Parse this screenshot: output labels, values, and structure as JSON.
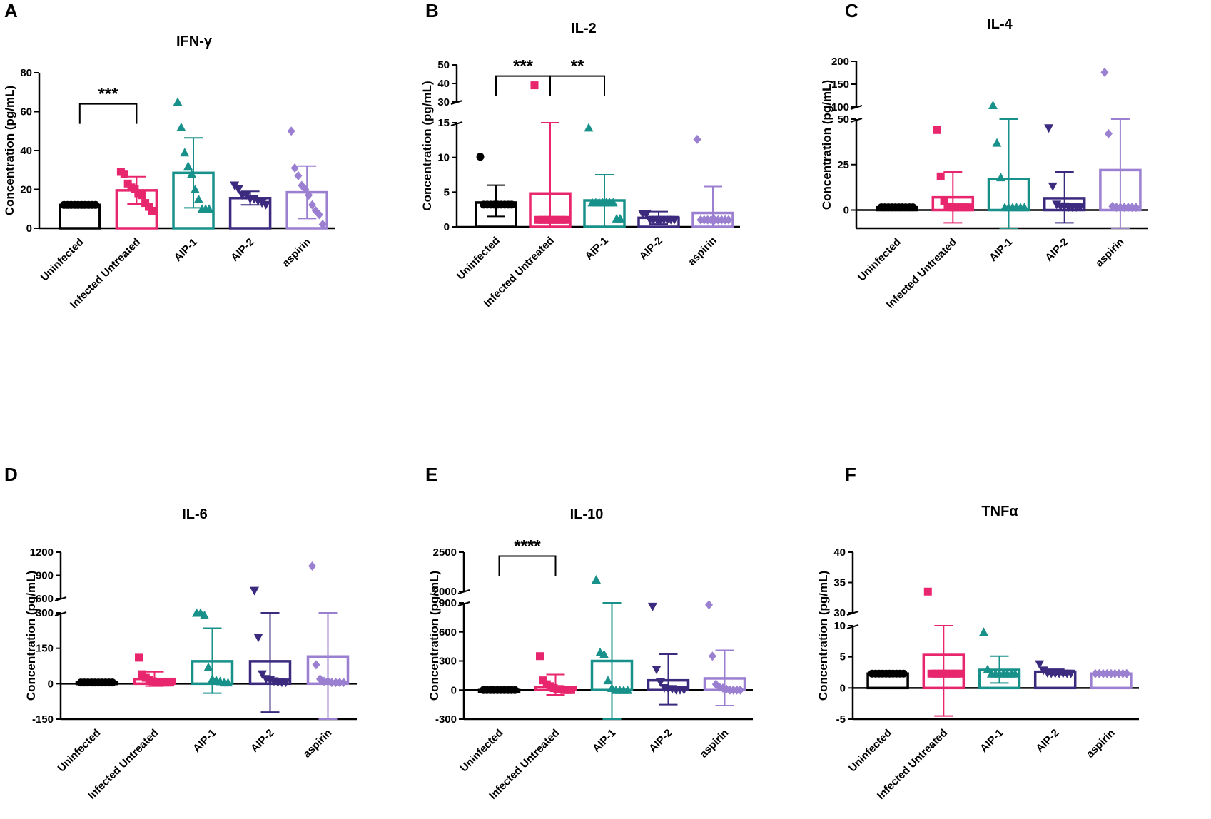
{
  "chart_data": [
    {
      "panel": "A",
      "title": "IFN-γ",
      "type": "bar",
      "ylabel": "Concentration (pg/mL)",
      "categories": [
        "Uninfected",
        "Infected Untreated",
        "AIP-1",
        "AIP-2",
        "aspirin"
      ],
      "segments": [
        {
          "range": [
            0,
            80
          ],
          "ticks": [
            0,
            20,
            40,
            60,
            80
          ]
        }
      ],
      "means": [
        12,
        19.5,
        28.5,
        15.5,
        18.5
      ],
      "errors": [
        [
          12,
          12
        ],
        [
          12.5,
          26.5
        ],
        [
          10.5,
          46.5
        ],
        [
          12,
          19
        ],
        [
          5,
          32
        ]
      ],
      "points": [
        [
          12,
          12,
          12,
          12,
          12,
          12,
          12,
          12,
          12,
          12
        ],
        [
          29,
          28,
          23,
          21,
          20,
          18,
          17,
          13,
          11,
          9
        ],
        [
          65,
          52,
          39,
          32,
          28,
          20,
          15,
          10,
          10,
          10
        ],
        [
          22,
          20,
          17,
          17,
          15,
          15,
          14,
          13,
          12
        ],
        [
          50,
          31,
          27,
          22,
          20,
          17,
          12,
          9,
          7,
          2
        ]
      ],
      "significance": [
        {
          "from": 0,
          "to": 1,
          "label": "***",
          "y": 64
        }
      ]
    },
    {
      "panel": "B",
      "title": "IL-2",
      "type": "bar",
      "ylabel": "Concentration (pg/mL)",
      "categories": [
        "Uninfected",
        "Infected Untreated",
        "AIP-1",
        "AIP-2",
        "aspirin"
      ],
      "segments": [
        {
          "range": [
            0,
            15
          ],
          "ticks": [
            0,
            5,
            10,
            15
          ]
        },
        {
          "range": [
            30,
            50
          ],
          "ticks": [
            30,
            40,
            50
          ]
        }
      ],
      "means": [
        3.5,
        4.8,
        3.8,
        1.3,
        2
      ],
      "errors": [
        [
          1.5,
          6
        ],
        [
          0,
          15.5
        ],
        [
          0,
          7.5
        ],
        [
          0.4,
          2.2
        ],
        [
          0,
          5.8
        ]
      ],
      "points": [
        [
          10.1,
          3.2,
          3.2,
          3.2,
          3.2,
          3.2,
          3.2,
          3.2,
          3.2,
          3.2
        ],
        [
          39,
          1,
          1,
          1,
          1,
          1,
          1,
          1,
          1,
          1
        ],
        [
          14.3,
          3.5,
          3.5,
          3.5,
          3.5,
          3.5,
          3.5,
          3.5,
          1.2,
          1.2
        ],
        [
          1.8,
          1.8,
          1,
          1,
          1,
          1,
          1,
          1,
          1,
          1
        ],
        [
          12.6,
          1,
          1,
          1,
          1,
          1,
          1,
          1,
          1,
          1
        ]
      ],
      "significance": [
        {
          "from": 0,
          "to": 1,
          "label": "***",
          "y": 44
        },
        {
          "from": 1,
          "to": 2,
          "label": "**",
          "y": 44
        }
      ]
    },
    {
      "panel": "C",
      "title": "IL-4",
      "type": "bar",
      "ylabel": "Concentration (pg/mL)",
      "categories": [
        "Uninfected",
        "Infected Untreated",
        "AIP-1",
        "AIP-2",
        "aspirin"
      ],
      "segments": [
        {
          "range": [
            -10,
            50
          ],
          "ticks": [
            0,
            25,
            50
          ]
        },
        {
          "range": [
            100,
            200
          ],
          "ticks": [
            100,
            150,
            200
          ]
        }
      ],
      "means": [
        1.5,
        7,
        17,
        6.5,
        22
      ],
      "errors": [
        [
          1.5,
          1.5
        ],
        [
          -7,
          21
        ],
        [
          -10,
          50
        ],
        [
          -7,
          21
        ],
        [
          -10,
          50
        ]
      ],
      "points": [
        [
          1.5,
          1.5,
          1.5,
          1.5,
          1.5,
          1.5,
          1.5,
          1.5,
          1.5,
          1.5
        ],
        [
          44,
          18.5,
          5,
          2,
          1.5,
          1.5,
          1.5,
          1.5,
          1.5,
          1.5
        ],
        [
          104,
          37,
          18,
          1.5,
          1.5,
          1.5,
          1.5,
          1.5,
          1.5
        ],
        [
          45,
          13,
          3,
          2,
          2,
          1.5,
          1.5,
          1.5,
          1.5
        ],
        [
          176,
          42,
          2,
          1.5,
          1.5,
          1.5,
          1.5,
          1.5,
          1.5
        ]
      ],
      "significance": []
    },
    {
      "panel": "D",
      "title": "IL-6",
      "type": "bar",
      "ylabel": "Concentration (pg/mL)",
      "categories": [
        "Uninfected",
        "Infected Untreated",
        "AIP-1",
        "AIP-2",
        "aspirin"
      ],
      "segments": [
        {
          "range": [
            -150,
            300
          ],
          "ticks": [
            -150,
            0,
            150,
            300
          ]
        },
        {
          "range": [
            600,
            1200
          ],
          "ticks": [
            600,
            900,
            1200
          ]
        }
      ],
      "means": [
        5,
        20,
        95,
        95,
        115
      ],
      "errors": [
        [
          5,
          5
        ],
        [
          -10,
          50
        ],
        [
          -40,
          235
        ],
        [
          -120,
          315
        ],
        [
          -150,
          350
        ]
      ],
      "points": [
        [
          5,
          5,
          5,
          5,
          5,
          5,
          5,
          5,
          5,
          5
        ],
        [
          110,
          40,
          25,
          15,
          10,
          5,
          5,
          5,
          5,
          5
        ],
        [
          320,
          310,
          290,
          70,
          20,
          15,
          10,
          5,
          5
        ],
        [
          700,
          195,
          40,
          20,
          15,
          10,
          5,
          5,
          5
        ],
        [
          1020,
          80,
          20,
          10,
          10,
          5,
          5,
          5,
          5
        ]
      ],
      "significance": []
    },
    {
      "panel": "E",
      "title": "IL-10",
      "type": "bar",
      "ylabel": "Concentration (pg/mL)",
      "categories": [
        "Uninfected",
        "Infected Untreated",
        "AIP-1",
        "AIP-2",
        "aspirin"
      ],
      "segments": [
        {
          "range": [
            -300,
            900
          ],
          "ticks": [
            -300,
            0,
            300,
            600,
            900
          ]
        },
        {
          "range": [
            2000,
            2500
          ],
          "ticks": [
            2000,
            2500
          ]
        }
      ],
      "means": [
        0,
        30,
        300,
        100,
        120
      ],
      "errors": [
        [
          0,
          0
        ],
        [
          -50,
          160
        ],
        [
          -300,
          900
        ],
        [
          -150,
          370
        ],
        [
          -160,
          410
        ]
      ],
      "points": [
        [
          0,
          0,
          0,
          0,
          0,
          0,
          0,
          0,
          0,
          0
        ],
        [
          350,
          100,
          60,
          40,
          20,
          10,
          10,
          0,
          0,
          0
        ],
        [
          2150,
          390,
          370,
          100,
          20,
          0,
          0,
          0,
          0
        ],
        [
          860,
          210,
          80,
          20,
          10,
          10,
          0,
          0,
          0
        ],
        [
          880,
          350,
          60,
          30,
          20,
          10,
          0,
          0,
          0,
          0
        ]
      ],
      "significance": [
        {
          "from": 0,
          "to": 1,
          "label": "****",
          "y": 2450
        }
      ]
    },
    {
      "panel": "F",
      "title": "TNFα",
      "type": "bar",
      "ylabel": "Concentration (pg/mL)",
      "categories": [
        "Uninfected",
        "Infected Untreated",
        "AIP-1",
        "AIP-2",
        "aspirin"
      ],
      "segments": [
        {
          "range": [
            -5,
            10
          ],
          "ticks": [
            -5,
            0,
            5,
            10
          ]
        },
        {
          "range": [
            30,
            40
          ],
          "ticks": [
            30,
            35,
            40
          ]
        }
      ],
      "means": [
        2.3,
        5.3,
        2.9,
        2.6,
        2.3
      ],
      "errors": [
        [
          2.3,
          2.3
        ],
        [
          -4.5,
          10
        ],
        [
          0.8,
          5.1
        ],
        [
          2.2,
          3
        ],
        [
          2.3,
          2.3
        ]
      ],
      "points": [
        [
          2.3,
          2.3,
          2.3,
          2.3,
          2.3,
          2.3,
          2.3,
          2.3,
          2.3,
          2.3
        ],
        [
          33.5,
          2.3,
          2.3,
          2.3,
          2.3,
          2.3,
          2.3,
          2.3,
          2.3,
          2.3
        ],
        [
          9,
          3,
          2.3,
          2.3,
          2.3,
          2.3,
          2.3,
          2.3,
          2.3
        ],
        [
          3.8,
          2.8,
          2.4,
          2.3,
          2.3,
          2.3,
          2.3,
          2.3,
          2.3
        ],
        [
          2.3,
          2.3,
          2.3,
          2.3,
          2.3,
          2.3,
          2.3,
          2.3,
          2.3
        ]
      ],
      "significance": []
    }
  ],
  "colors": [
    "#000000",
    "#e8266e",
    "#18918a",
    "#3b2a7e",
    "#9b7fd0"
  ],
  "markers": [
    "circle",
    "square",
    "triangle-up",
    "triangle-down",
    "diamond"
  ]
}
